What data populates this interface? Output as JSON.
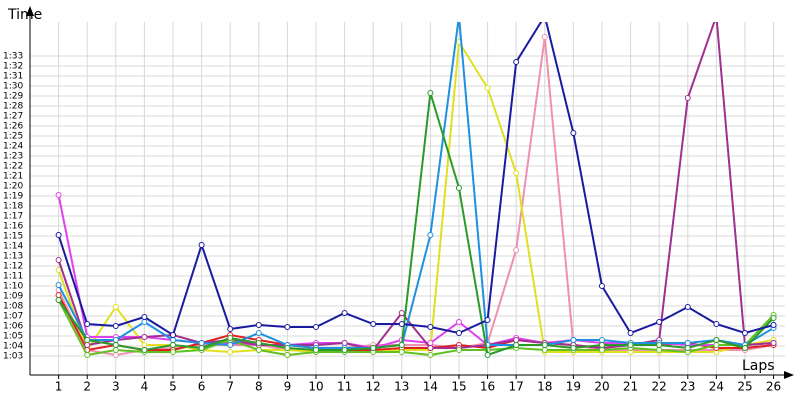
{
  "chart_data": {
    "type": "line",
    "y_label": "Time",
    "x_label": "Laps",
    "x": [
      1,
      2,
      3,
      4,
      5,
      6,
      7,
      8,
      9,
      10,
      11,
      12,
      13,
      14,
      15,
      16,
      17,
      18,
      19,
      20,
      21,
      22,
      23,
      24,
      25,
      26
    ],
    "xlim": [
      0,
      26.4
    ],
    "xticks": [
      1,
      2,
      3,
      4,
      5,
      6,
      7,
      8,
      9,
      10,
      11,
      12,
      13,
      14,
      15,
      16,
      17,
      18,
      19,
      20,
      21,
      22,
      23,
      24,
      25,
      26
    ],
    "ylim": [
      61.1,
      96.4
    ],
    "yticks": [
      {
        "value": 63,
        "label": "1:03"
      },
      {
        "value": 64,
        "label": "1:04"
      },
      {
        "value": 65,
        "label": "1:05"
      },
      {
        "value": 66,
        "label": "1:06"
      },
      {
        "value": 67,
        "label": "1:07"
      },
      {
        "value": 68,
        "label": "1:08"
      },
      {
        "value": 69,
        "label": "1:09"
      },
      {
        "value": 70,
        "label": "1:10"
      },
      {
        "value": 71,
        "label": "1:11"
      },
      {
        "value": 72,
        "label": "1:12"
      },
      {
        "value": 73,
        "label": "1:13"
      },
      {
        "value": 74,
        "label": "1:14"
      },
      {
        "value": 75,
        "label": "1:15"
      },
      {
        "value": 76,
        "label": "1:16"
      },
      {
        "value": 77,
        "label": "1:17"
      },
      {
        "value": 78,
        "label": "1:18"
      },
      {
        "value": 79,
        "label": "1:19"
      },
      {
        "value": 80,
        "label": "1:20"
      },
      {
        "value": 81,
        "label": "1:21"
      },
      {
        "value": 82,
        "label": "1:22"
      },
      {
        "value": 83,
        "label": "1:23"
      },
      {
        "value": 84,
        "label": "1:24"
      },
      {
        "value": 85,
        "label": "1:25"
      },
      {
        "value": 86,
        "label": "1:26"
      },
      {
        "value": 87,
        "label": "1:27"
      },
      {
        "value": 88,
        "label": "1:28"
      },
      {
        "value": 89,
        "label": "1:29"
      },
      {
        "value": 90,
        "label": "1:30"
      },
      {
        "value": 91,
        "label": "1:31"
      },
      {
        "value": 92,
        "label": "1:32"
      },
      {
        "value": 93,
        "label": "1:33"
      }
    ],
    "grid": true,
    "series": [
      {
        "color": "#f090b0",
        "values": [
          69.6,
          63.6,
          63.1,
          63.6,
          63.8,
          64.1,
          64.1,
          64.1,
          63.6,
          63.6,
          63.8,
          64.1,
          64.1,
          64.1,
          63.8,
          64.3,
          73.6,
          94.9,
          64.1,
          63.6,
          63.6,
          63.6,
          63.6,
          63.6,
          63.6,
          64.1
        ]
      },
      {
        "color": "#e0e020",
        "values": [
          71.6,
          63.6,
          67.9,
          64.1,
          64.1,
          63.6,
          63.4,
          63.6,
          63.6,
          63.4,
          63.6,
          63.6,
          63.6,
          63.6,
          94.4,
          89.8,
          81.3,
          63.4,
          63.4,
          63.4,
          63.4,
          63.4,
          63.4,
          63.4,
          64.1,
          64.6
        ]
      },
      {
        "color": "#e02020",
        "values": [
          69.1,
          63.6,
          64.1,
          63.6,
          63.6,
          64.3,
          65.1,
          64.6,
          64.1,
          63.8,
          63.6,
          63.6,
          63.8,
          63.8,
          64.1,
          63.8,
          64.6,
          64.3,
          64.1,
          63.8,
          64.1,
          64.1,
          64.3,
          63.8,
          63.8,
          64.1
        ]
      },
      {
        "color": "#e040f0",
        "values": [
          79.1,
          64.9,
          64.9,
          64.9,
          64.6,
          64.3,
          64.3,
          64.1,
          64.1,
          64.3,
          64.3,
          63.8,
          64.6,
          64.3,
          66.4,
          64.1,
          64.8,
          64.3,
          64.6,
          64.3,
          64.3,
          64.3,
          64.1,
          64.1,
          64.1,
          64.3
        ]
      },
      {
        "color": "#a03090",
        "values": [
          72.6,
          64.1,
          64.6,
          64.9,
          65.1,
          64.3,
          64.6,
          64.1,
          64.1,
          64.1,
          64.3,
          63.6,
          67.3,
          63.8,
          63.8,
          64.1,
          64.6,
          64.3,
          64.1,
          63.8,
          64.1,
          64.6,
          88.8,
          97,
          64.1,
          64.3
        ]
      },
      {
        "color": "#60c020",
        "values": [
          68.6,
          63.1,
          63.6,
          63.4,
          63.4,
          63.6,
          64.6,
          63.6,
          63.1,
          63.4,
          63.4,
          63.4,
          63.4,
          63.1,
          63.6,
          63.6,
          63.8,
          63.6,
          63.6,
          63.6,
          63.8,
          63.6,
          63.4,
          64.1,
          64.1,
          67.1
        ]
      },
      {
        "color": "#1e90e0",
        "values": [
          70.1,
          64.6,
          64.6,
          66.4,
          64.6,
          64.3,
          64.1,
          65.3,
          64.1,
          63.8,
          63.8,
          63.8,
          64.1,
          75.1,
          97,
          64.1,
          64.1,
          64.1,
          64.6,
          64.6,
          64.3,
          64.3,
          64.3,
          64.6,
          64.1,
          65.8
        ]
      },
      {
        "color": "#2a9a2a",
        "values": [
          68.6,
          64.6,
          64.1,
          63.6,
          64.1,
          63.8,
          64.8,
          64.3,
          63.8,
          63.6,
          63.6,
          63.8,
          64.1,
          89.3,
          79.8,
          63.1,
          64.1,
          64.1,
          63.8,
          64.1,
          64.1,
          64.1,
          63.8,
          64.6,
          63.8,
          66.8
        ]
      },
      {
        "color": "#1a1aa0",
        "values": [
          75.1,
          66.2,
          66,
          66.9,
          65.1,
          74.1,
          65.7,
          66.1,
          65.9,
          65.9,
          67.3,
          66.2,
          66.2,
          65.9,
          65.3,
          66.6,
          92.4,
          97,
          85.3,
          70,
          65.3,
          66.4,
          67.9,
          66.2,
          65.3,
          66.1
        ]
      }
    ]
  }
}
